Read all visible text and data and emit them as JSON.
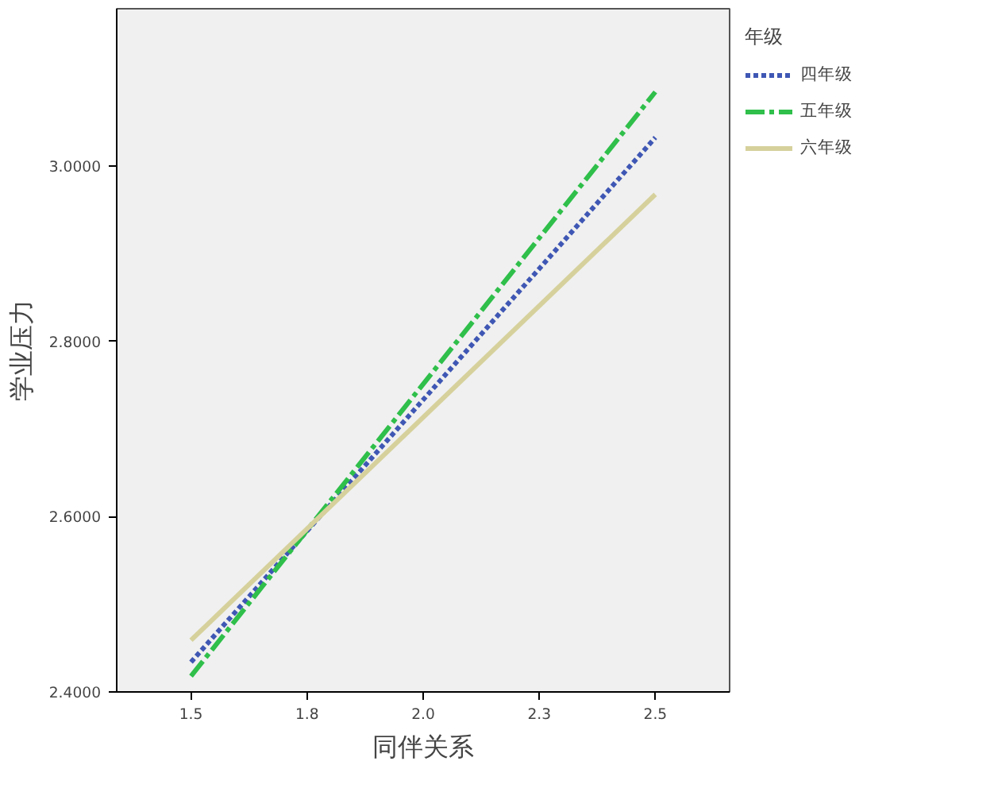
{
  "chart_data": {
    "type": "line",
    "xlabel": "同伴关系",
    "ylabel": "学业压力",
    "legend_title": "年级",
    "x": [
      1.5,
      2.5
    ],
    "series": [
      {
        "name": "四年级",
        "color": "#3f57b4",
        "values": [
          2.434,
          3.033
        ],
        "line_style": "dotted"
      },
      {
        "name": "五年级",
        "color": "#2fbf4a",
        "values": [
          2.418,
          3.085
        ],
        "line_style": "dashdot"
      },
      {
        "name": "六年级",
        "color": "#d6d19c",
        "values": [
          2.459,
          2.968
        ],
        "line_style": "solid"
      }
    ],
    "xlim": [
      1.34,
      2.66
    ],
    "ylim": [
      2.4,
      3.18
    ],
    "xticks": [
      1.5,
      {
        "value": 1.75,
        "label": "1.8"
      },
      {
        "value": 2.0,
        "label": "2.0"
      },
      {
        "value": 2.25,
        "label": "2.3"
      },
      2.5
    ],
    "yticks": [
      {
        "value": 2.4,
        "label": "2.4000"
      },
      {
        "value": 2.6,
        "label": "2.6000"
      },
      {
        "value": 2.8,
        "label": "2.8000"
      },
      {
        "value": 3.0,
        "label": "3.0000"
      }
    ],
    "grid": false,
    "legend": "top right",
    "marker": "none"
  }
}
